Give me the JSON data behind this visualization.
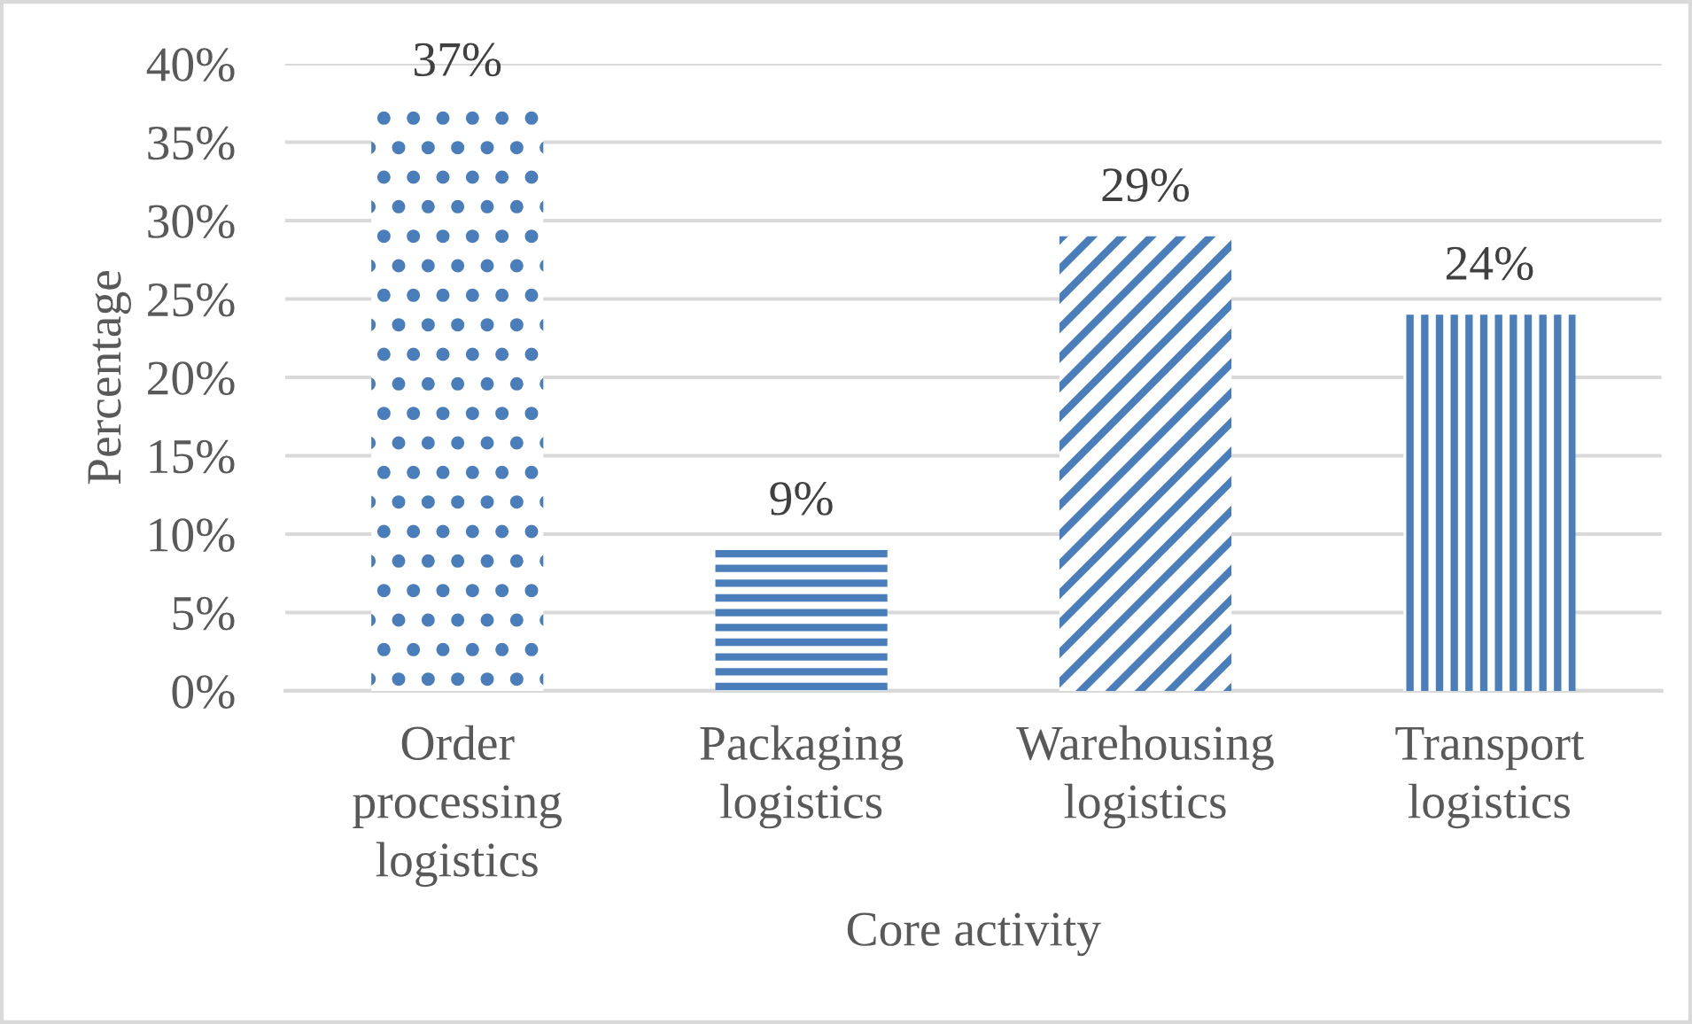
{
  "chart_data": {
    "type": "bar",
    "categories": [
      "Order processing logistics",
      "Packaging logistics",
      "Warehousing logistics",
      "Transport logistics"
    ],
    "values": [
      37,
      9,
      29,
      24
    ],
    "color": "#4a7ebb",
    "value_labels": [
      "37%",
      "9%",
      "29%",
      "24%"
    ],
    "xlabel": "Core activity",
    "ylabel": "Percentage",
    "ylim": [
      0,
      40
    ],
    "yticks": [
      {
        "value": 0,
        "label": "0%"
      },
      {
        "value": 5,
        "label": "5%"
      },
      {
        "value": 10,
        "label": "10%"
      },
      {
        "value": 15,
        "label": "15%"
      },
      {
        "value": 20,
        "label": "20%"
      },
      {
        "value": 25,
        "label": "25%"
      },
      {
        "value": 30,
        "label": "30%"
      },
      {
        "value": 35,
        "label": "35%"
      },
      {
        "value": 40,
        "label": "40%"
      }
    ],
    "grid": "y"
  }
}
